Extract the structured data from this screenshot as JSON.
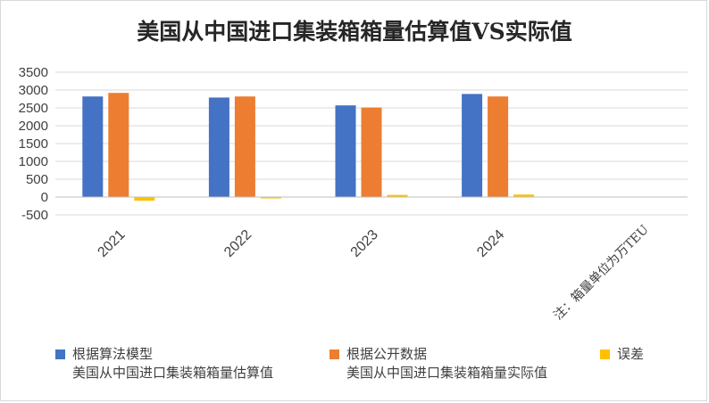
{
  "chart_data": {
    "type": "bar",
    "title": "美国从中国进口集装箱箱量估算值VS实际值",
    "categories": [
      "2021",
      "2022",
      "2023",
      "2024",
      ""
    ],
    "series": [
      {
        "name": "根据算法模型\n美国从中国进口集装箱箱量估算值",
        "color": "#4472C4",
        "values": [
          2820,
          2790,
          2570,
          2890,
          null
        ]
      },
      {
        "name": "根据公开数据\n美国从中国进口集装箱箱量实际值",
        "color": "#ED7D31",
        "values": [
          2920,
          2820,
          2510,
          2820,
          null
        ]
      },
      {
        "name": "误差",
        "color": "#FFC000",
        "values": [
          -100,
          -30,
          60,
          70,
          null
        ]
      }
    ],
    "ylim": [
      -500,
      3500
    ],
    "yticks": [
      "3500",
      "3000",
      "2500",
      "2000",
      "1500",
      "1000",
      "500",
      "0",
      "-500"
    ],
    "xlabel": "",
    "ylabel": "",
    "annotation": "注：箱量单位为万TEU",
    "grid": true,
    "legend": "bottom"
  }
}
